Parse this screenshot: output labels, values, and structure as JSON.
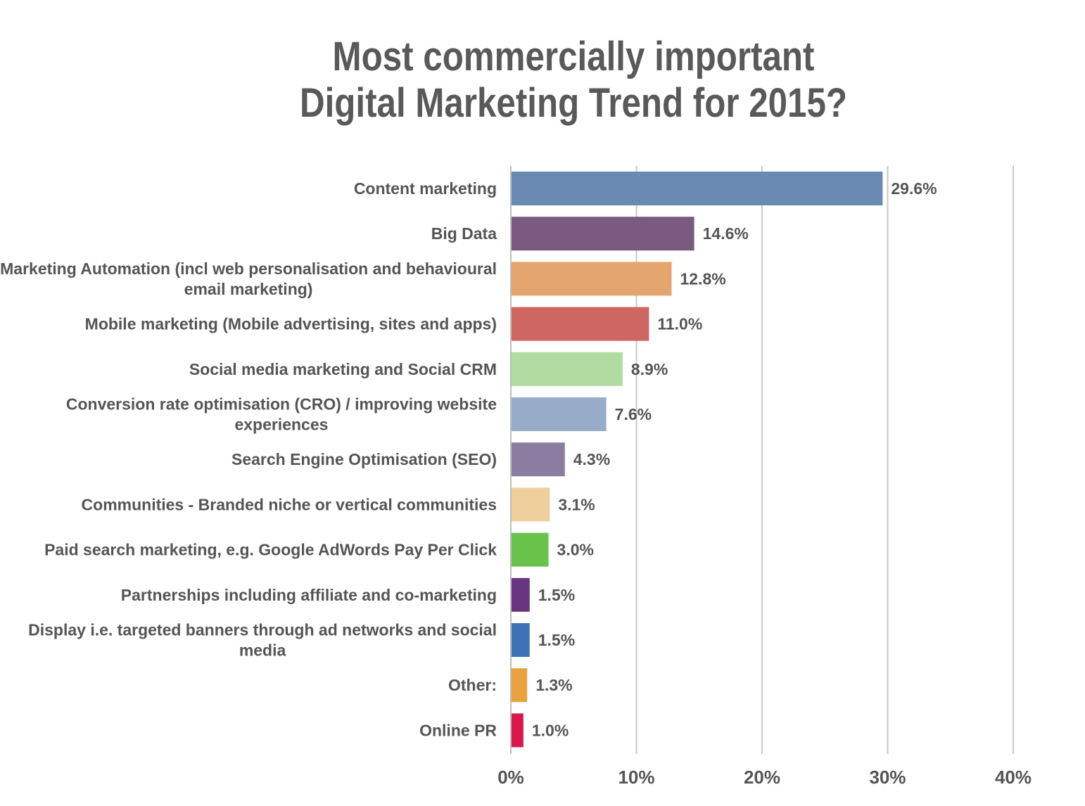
{
  "chart_data": {
    "type": "bar",
    "orientation": "horizontal",
    "title": [
      "Most commercially important",
      "Digital Marketing Trend for 2015?"
    ],
    "categories": [
      [
        "Content marketing"
      ],
      [
        "Big Data"
      ],
      [
        "Marketing Automation (incl web personalisation and behavioural",
        "email marketing)"
      ],
      [
        "Mobile marketing (Mobile advertising, sites and apps)"
      ],
      [
        "Social media marketing and Social CRM"
      ],
      [
        "Conversion rate optimisation (CRO) / improving website",
        "experiences"
      ],
      [
        "Search Engine Optimisation (SEO)"
      ],
      [
        "Communities - Branded niche or vertical communities"
      ],
      [
        "Paid search marketing, e.g. Google AdWords Pay Per Click"
      ],
      [
        "Partnerships including affiliate and co-marketing"
      ],
      [
        "Display i.e. targeted banners through ad networks and social",
        "media"
      ],
      [
        "Other:"
      ],
      [
        "Online PR"
      ]
    ],
    "values": [
      29.6,
      14.6,
      12.8,
      11.0,
      8.9,
      7.6,
      4.3,
      3.1,
      3.0,
      1.5,
      1.5,
      1.3,
      1.0
    ],
    "value_labels": [
      "29.6%",
      "14.6%",
      "12.8%",
      "11.0%",
      "8.9%",
      "7.6%",
      "4.3%",
      "3.1%",
      "3.0%",
      "1.5%",
      "1.5%",
      "1.3%",
      "1.0%"
    ],
    "colors": [
      "#6a89b3",
      "#7a5a80",
      "#e3a46e",
      "#cf6661",
      "#b1dca1",
      "#98abc9",
      "#8b7da1",
      "#efcf9c",
      "#69c24a",
      "#6a3580",
      "#3d72b4",
      "#eaa23f",
      "#d9184c"
    ],
    "xlim": [
      0,
      40
    ],
    "xticks": [
      0,
      10,
      20,
      30,
      40
    ],
    "xtick_labels": [
      "0%",
      "10%",
      "20%",
      "30%",
      "40%"
    ],
    "grid": true,
    "legend": false
  }
}
